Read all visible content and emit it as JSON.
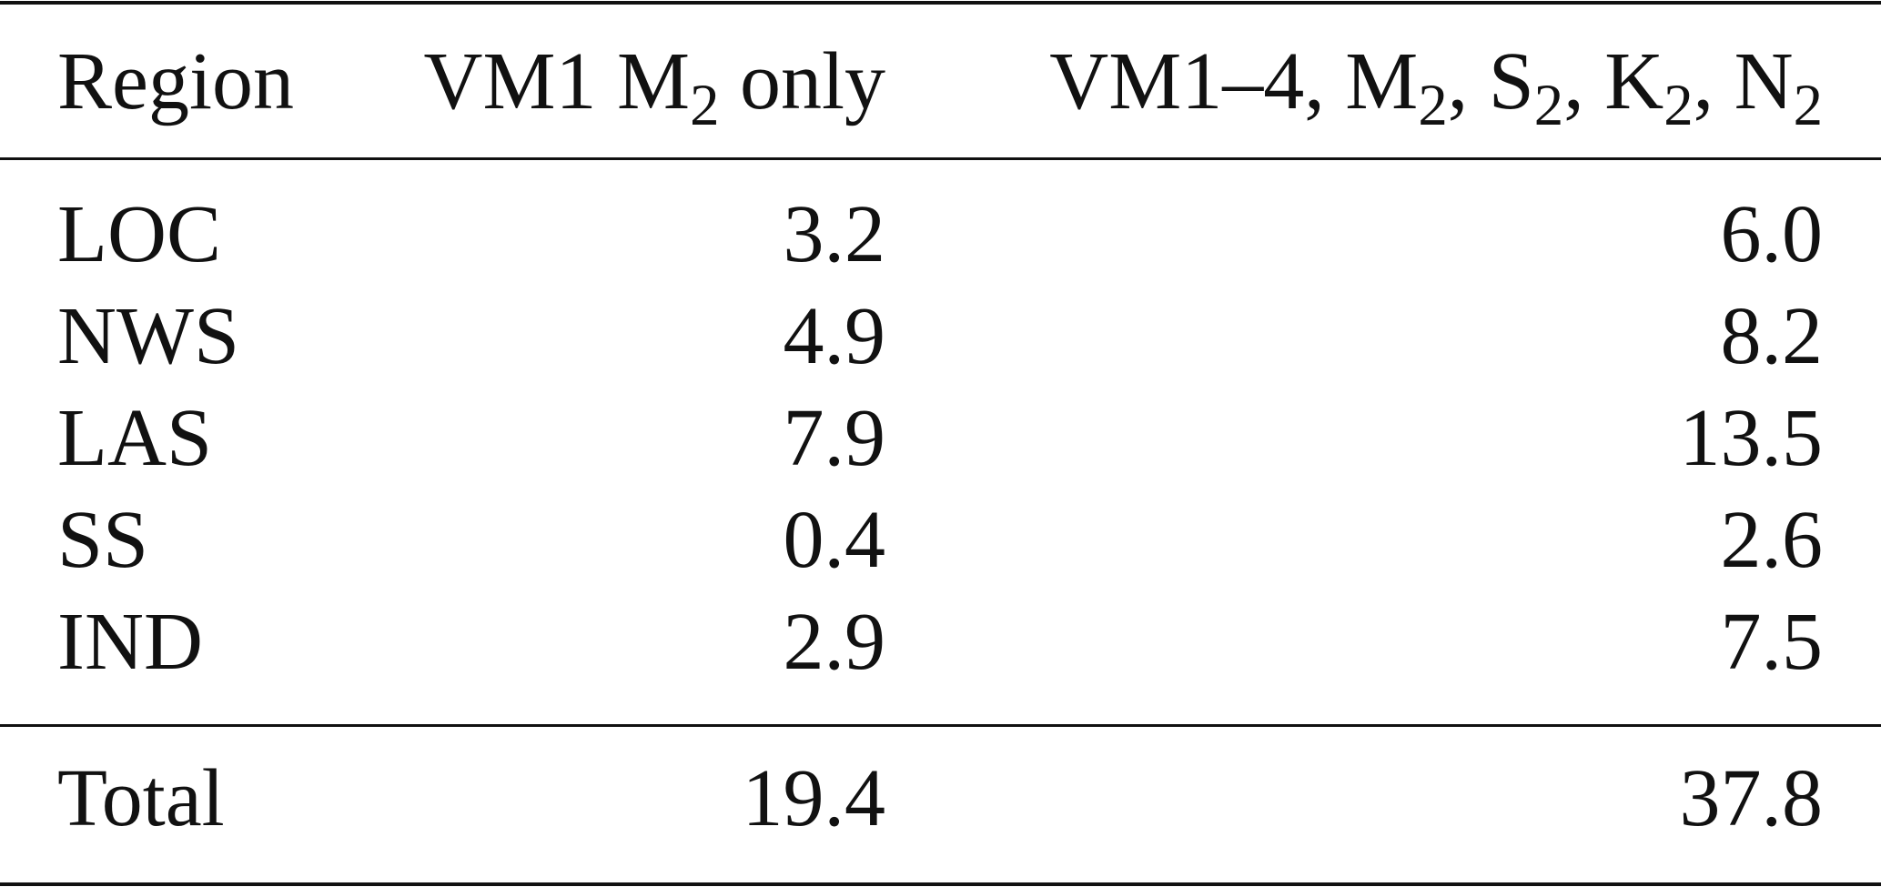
{
  "table": {
    "header": [
      [
        "Region"
      ],
      [
        "VM1 M",
        "2",
        " only"
      ],
      [
        "VM1–4, M",
        "2",
        ", S",
        "2",
        ", K",
        "2",
        ", N",
        "2"
      ]
    ],
    "rows": [
      [
        "LOC",
        "3.2",
        "6.0"
      ],
      [
        "NWS",
        "4.9",
        "8.2"
      ],
      [
        "LAS",
        "7.9",
        "13.5"
      ],
      [
        "SS",
        "0.4",
        "2.6"
      ],
      [
        "IND",
        "2.9",
        "7.5"
      ]
    ],
    "total": [
      "Total",
      "19.4",
      "37.8"
    ]
  }
}
